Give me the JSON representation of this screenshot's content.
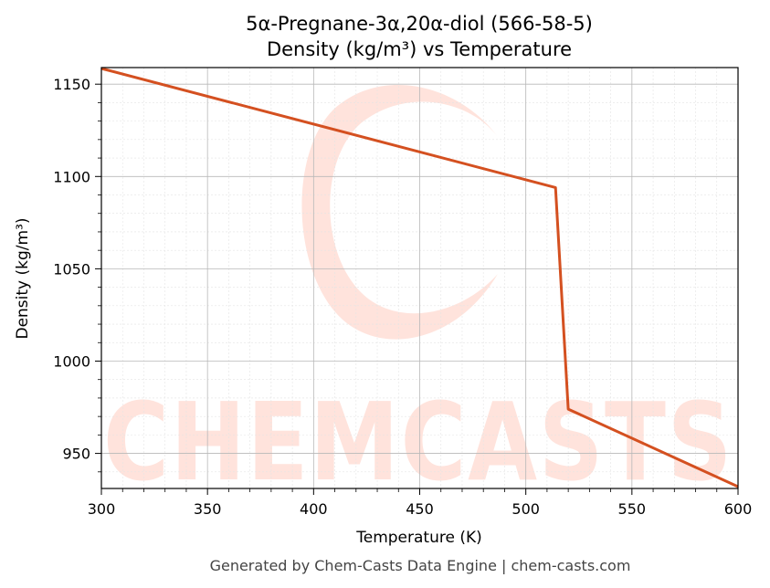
{
  "chart_data": {
    "type": "line",
    "title_line1": "5α-Pregnane-3α,20α-diol (566-58-5)",
    "title_line2": "Density (kg/m³) vs Temperature",
    "xlabel": "Temperature (K)",
    "ylabel": "Density (kg/m³)",
    "xlim": [
      300,
      600
    ],
    "ylim": [
      931,
      1159
    ],
    "xticks": [
      300,
      350,
      400,
      450,
      500,
      550,
      600
    ],
    "yticks": [
      950,
      1000,
      1050,
      1100,
      1150
    ],
    "grid": true,
    "line_color": "#d45020",
    "series": [
      {
        "x": [
          300,
          514,
          520,
          600
        ],
        "y": [
          1158.5,
          1094,
          974,
          932
        ]
      }
    ]
  },
  "watermark": {
    "text": "CHEMCASTS",
    "color": "#ffe3dc"
  },
  "footer": "Generated by Chem-Casts Data Engine | chem-casts.com"
}
